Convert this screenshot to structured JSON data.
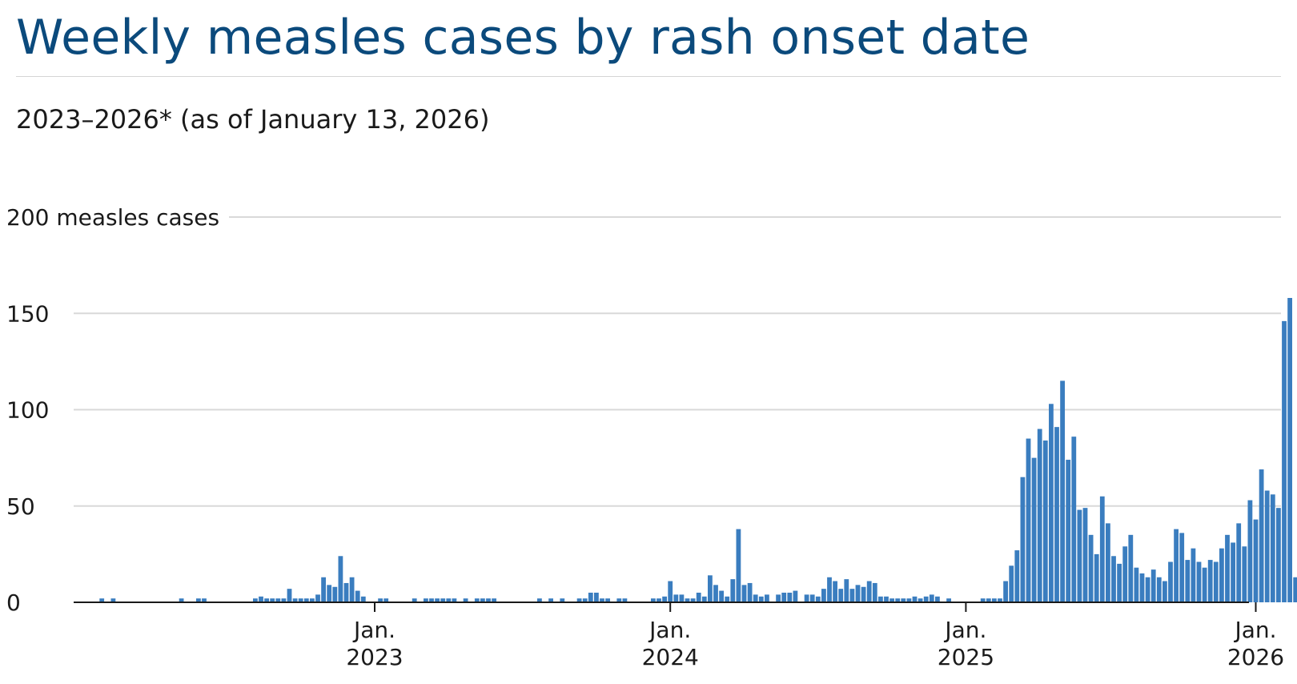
{
  "chart_data": {
    "type": "bar",
    "title": "Weekly measles cases by rash onset date",
    "subtitle": "2023–2026* (as of January 13, 2026)",
    "ylim": [
      0,
      200
    ],
    "y_ticks": [
      {
        "value": 0,
        "label": "0"
      },
      {
        "value": 50,
        "label": "50"
      },
      {
        "value": 100,
        "label": "100"
      },
      {
        "value": 150,
        "label": "150"
      },
      {
        "value": 200,
        "label": "200 measles cases"
      }
    ],
    "x_ticks": [
      {
        "week_index": 51,
        "line1": "Jan.",
        "line2": "2023"
      },
      {
        "week_index": 103,
        "line1": "Jan.",
        "line2": "2024"
      },
      {
        "week_index": 155,
        "line1": "Jan.",
        "line2": "2025"
      },
      {
        "week_index": 206,
        "line1": "Jan.",
        "line2": "2026"
      }
    ],
    "bar_color": "#3a7dbf",
    "grid": true,
    "values": [
      0,
      0,
      0,
      2,
      0,
      2,
      0,
      0,
      0,
      0,
      0,
      0,
      0,
      0,
      0,
      0,
      0,
      2,
      0,
      0,
      2,
      2,
      0,
      0,
      0,
      0,
      0,
      0,
      0,
      0,
      2,
      3,
      2,
      2,
      2,
      2,
      7,
      2,
      2,
      2,
      2,
      4,
      13,
      9,
      8,
      24,
      10,
      13,
      6,
      3,
      0,
      0,
      2,
      2,
      0,
      0,
      0,
      0,
      2,
      0,
      2,
      2,
      2,
      2,
      2,
      2,
      0,
      2,
      0,
      2,
      2,
      2,
      2,
      0,
      0,
      0,
      0,
      0,
      0,
      0,
      2,
      0,
      2,
      0,
      2,
      0,
      0,
      2,
      2,
      5,
      5,
      2,
      2,
      0,
      2,
      2,
      0,
      0,
      0,
      0,
      2,
      2,
      3,
      11,
      4,
      4,
      2,
      2,
      5,
      3,
      14,
      9,
      6,
      3,
      12,
      38,
      9,
      10,
      4,
      3,
      4,
      0,
      4,
      5,
      5,
      6,
      0,
      4,
      4,
      3,
      7,
      13,
      11,
      7,
      12,
      7,
      9,
      8,
      11,
      10,
      3,
      3,
      2,
      2,
      2,
      2,
      3,
      2,
      3,
      4,
      3,
      0,
      2,
      0,
      0,
      0,
      0,
      0,
      2,
      2,
      2,
      2,
      11,
      19,
      27,
      65,
      85,
      75,
      90,
      84,
      103,
      91,
      115,
      74,
      86,
      48,
      49,
      35,
      25,
      55,
      41,
      24,
      20,
      29,
      35,
      18,
      15,
      13,
      17,
      13,
      11,
      21,
      38,
      36,
      22,
      28,
      21,
      18,
      22,
      21,
      28,
      35,
      31,
      41,
      29,
      53,
      43,
      69,
      58,
      56,
      49,
      146,
      158,
      13
    ]
  }
}
